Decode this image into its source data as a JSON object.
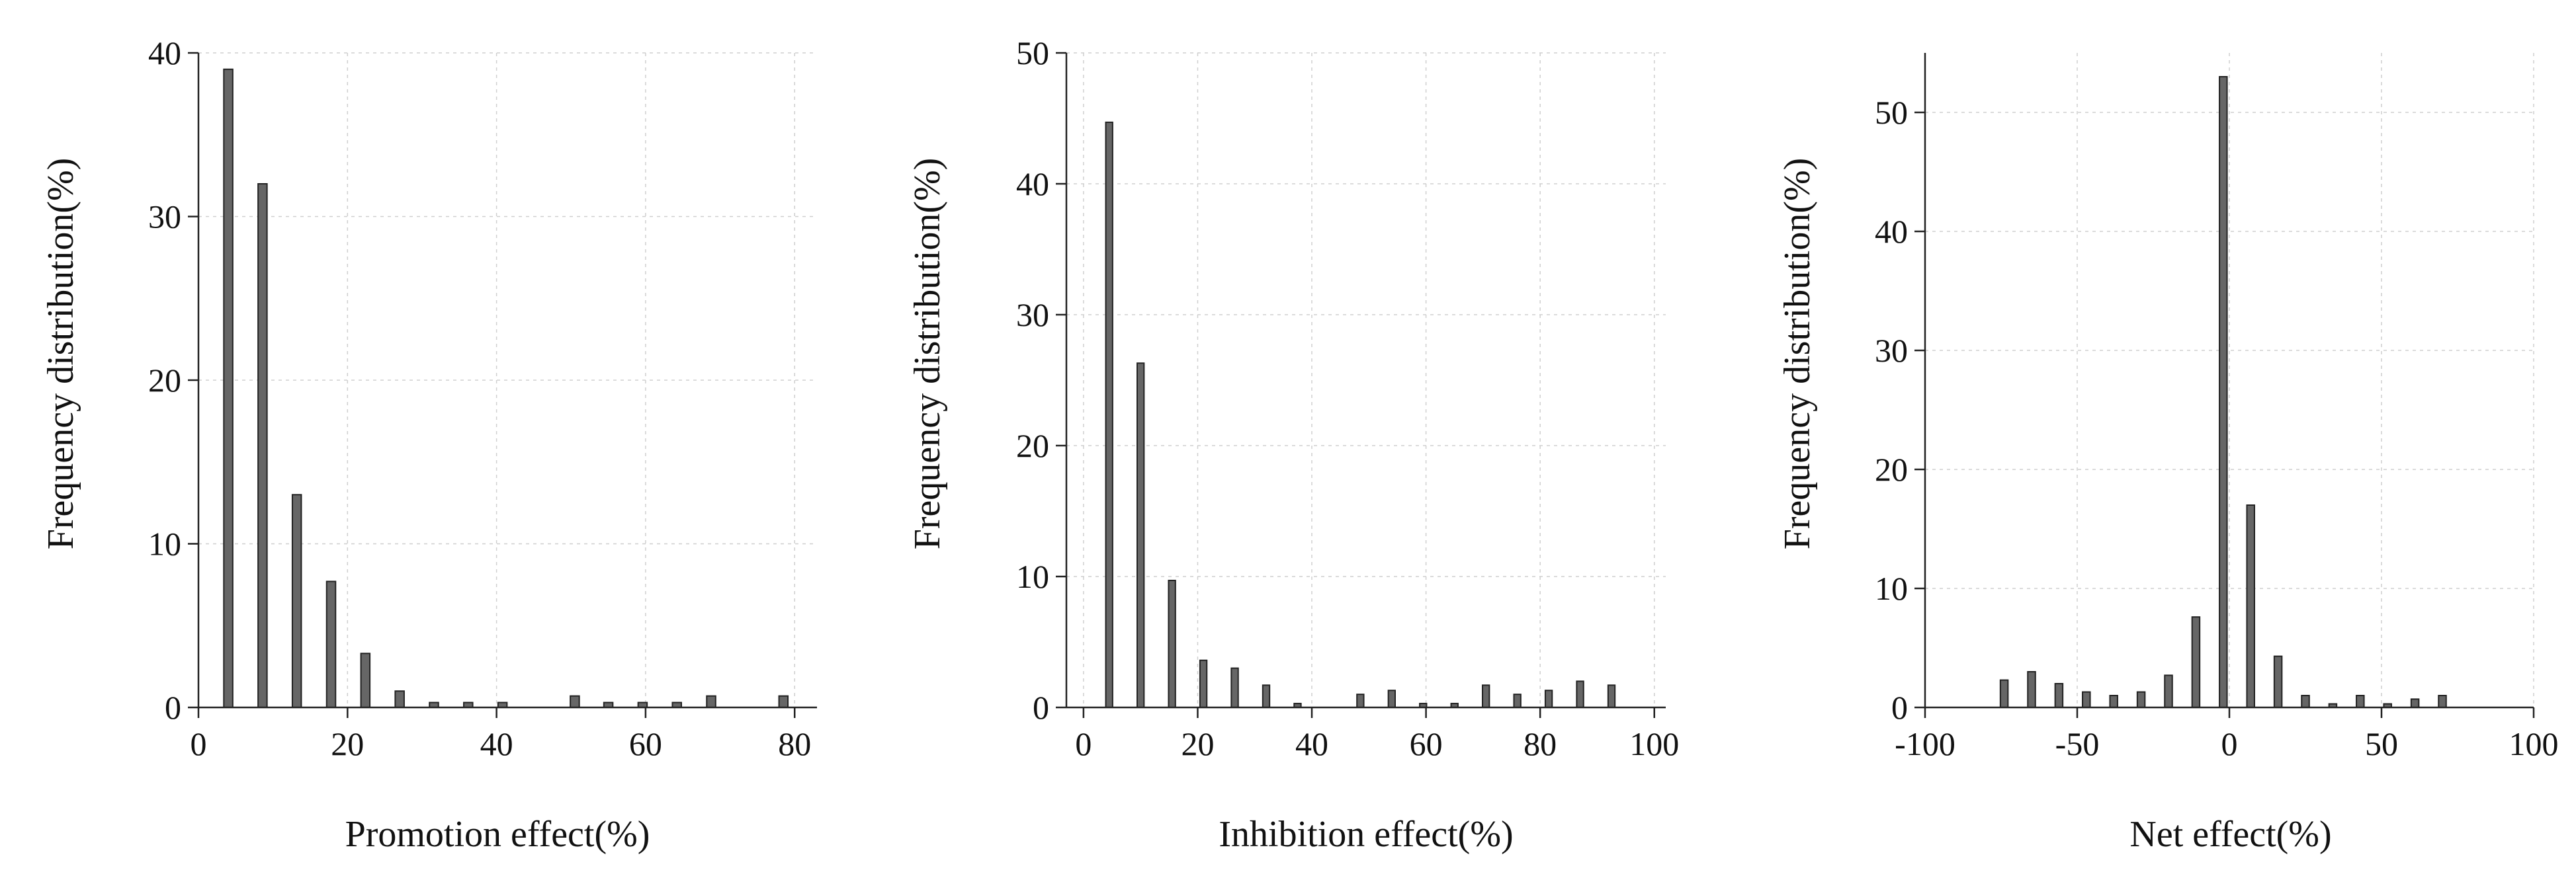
{
  "bar_color": "#666666",
  "grid_color": "#cfcfcf",
  "chart_data": [
    {
      "type": "bar",
      "title": "",
      "xlabel": "Promotion effect(%)",
      "ylabel": "Frequency distribution(%)",
      "xlim": [
        0,
        83
      ],
      "ylim": [
        0,
        40
      ],
      "xticks": [
        0,
        20,
        40,
        60,
        80
      ],
      "yticks": [
        0,
        10,
        20,
        30,
        40
      ],
      "grid": true,
      "bin_width": 1.2,
      "x": [
        4,
        8.6,
        13.2,
        17.8,
        22.4,
        27,
        31.6,
        36.2,
        40.8,
        50.5,
        55,
        59.6,
        64.2,
        68.8,
        78.5
      ],
      "values": [
        39,
        32,
        13,
        7.7,
        3.3,
        1.0,
        0.3,
        0.3,
        0.3,
        0.7,
        0.3,
        0.3,
        0.3,
        0.7,
        0.7
      ]
    },
    {
      "type": "bar",
      "title": "",
      "xlabel": "Inhibition effect(%)",
      "ylabel": "Frequency distribution(%)",
      "xlim": [
        -3,
        102
      ],
      "ylim": [
        0,
        50
      ],
      "xticks": [
        0,
        20,
        40,
        60,
        80,
        100
      ],
      "yticks": [
        0,
        10,
        20,
        30,
        40,
        50
      ],
      "grid": true,
      "bin_width": 1.2,
      "x": [
        4.5,
        10,
        15.5,
        21,
        26.5,
        32,
        37.5,
        48.5,
        54,
        59.5,
        65,
        70.5,
        76,
        81.5,
        87,
        92.5
      ],
      "values": [
        44.7,
        26.3,
        9.7,
        3.6,
        3.0,
        1.7,
        0.3,
        1.0,
        1.3,
        0.3,
        0.3,
        1.7,
        1.0,
        1.3,
        2.0,
        1.7
      ]
    },
    {
      "type": "bar",
      "title": "",
      "xlabel": "Net effect(%)",
      "ylabel": "Frequency distribution(%)",
      "xlim": [
        -100,
        100
      ],
      "ylim": [
        0,
        55
      ],
      "xticks": [
        -100,
        -50,
        0,
        50,
        100
      ],
      "yticks": [
        0,
        10,
        20,
        30,
        40,
        50
      ],
      "grid": true,
      "bin_width": 2.5,
      "x": [
        -74,
        -65,
        -56,
        -47,
        -38,
        -29,
        -20,
        -11,
        -2,
        7,
        16,
        25,
        34,
        43,
        52,
        61,
        70
      ],
      "values": [
        2.3,
        3.0,
        2.0,
        1.3,
        1.0,
        1.3,
        2.7,
        7.6,
        53,
        17,
        4.3,
        1.0,
        0.3,
        1.0,
        0.3,
        0.7,
        1.0
      ]
    }
  ]
}
